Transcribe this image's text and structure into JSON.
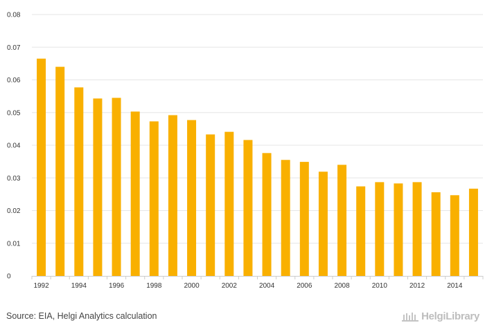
{
  "chart_data": {
    "type": "bar",
    "title": "",
    "xlabel": "",
    "ylabel": "",
    "ylim": [
      0,
      0.08
    ],
    "yticks": [
      "0",
      "0.01",
      "0.02",
      "0.03",
      "0.04",
      "0.05",
      "0.06",
      "0.07",
      "0.08"
    ],
    "xtick_labels": [
      "1992",
      "1994",
      "1996",
      "1998",
      "2000",
      "2002",
      "2004",
      "2006",
      "2008",
      "2010",
      "2012",
      "2014"
    ],
    "categories": [
      "1992",
      "1993",
      "1994",
      "1995",
      "1996",
      "1997",
      "1998",
      "1999",
      "2000",
      "2001",
      "2002",
      "2003",
      "2004",
      "2005",
      "2006",
      "2007",
      "2008",
      "2009",
      "2010",
      "2011",
      "2012",
      "2013",
      "2014",
      "2015"
    ],
    "values": [
      0.0665,
      0.064,
      0.0577,
      0.0543,
      0.0545,
      0.0503,
      0.0473,
      0.0492,
      0.0477,
      0.0433,
      0.0441,
      0.0416,
      0.0376,
      0.0355,
      0.0349,
      0.0319,
      0.034,
      0.0274,
      0.0287,
      0.0283,
      0.0287,
      0.0256,
      0.0247,
      0.0267
    ],
    "bar_color": "#f9b000",
    "grid": true
  },
  "footer": {
    "source": "Source: EIA, Helgi Analytics calculation",
    "logo_text": "HelgiLibrary",
    "logo_icon": "library-building-icon"
  }
}
